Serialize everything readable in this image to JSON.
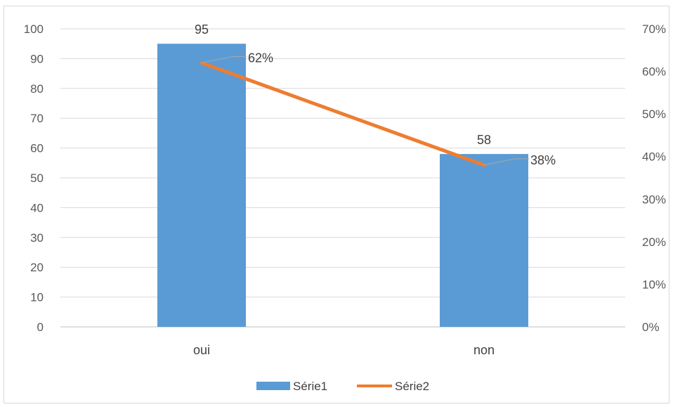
{
  "chart_data": {
    "type": "bar",
    "categories": [
      "oui",
      "non"
    ],
    "series": [
      {
        "name": "Série1",
        "type": "bar",
        "axis": "left",
        "values": [
          95,
          58
        ],
        "labels": [
          "95",
          "58"
        ],
        "color": "#5b9bd5"
      },
      {
        "name": "Série2",
        "type": "line",
        "axis": "right",
        "values": [
          0.62,
          0.38
        ],
        "labels": [
          "62%",
          "38%"
        ],
        "color": "#ed7d31"
      }
    ],
    "y_left": {
      "min": 0,
      "max": 100,
      "step": 10,
      "ticks": [
        "0",
        "10",
        "20",
        "30",
        "40",
        "50",
        "60",
        "70",
        "80",
        "90",
        "100"
      ]
    },
    "y_right": {
      "min": 0,
      "max": 0.7,
      "step": 0.1,
      "ticks": [
        "0%",
        "10%",
        "20%",
        "30%",
        "40%",
        "50%",
        "60%",
        "70%"
      ]
    },
    "grid": true,
    "legend": "bottom",
    "title": "",
    "xlabel": "",
    "ylabel": ""
  }
}
